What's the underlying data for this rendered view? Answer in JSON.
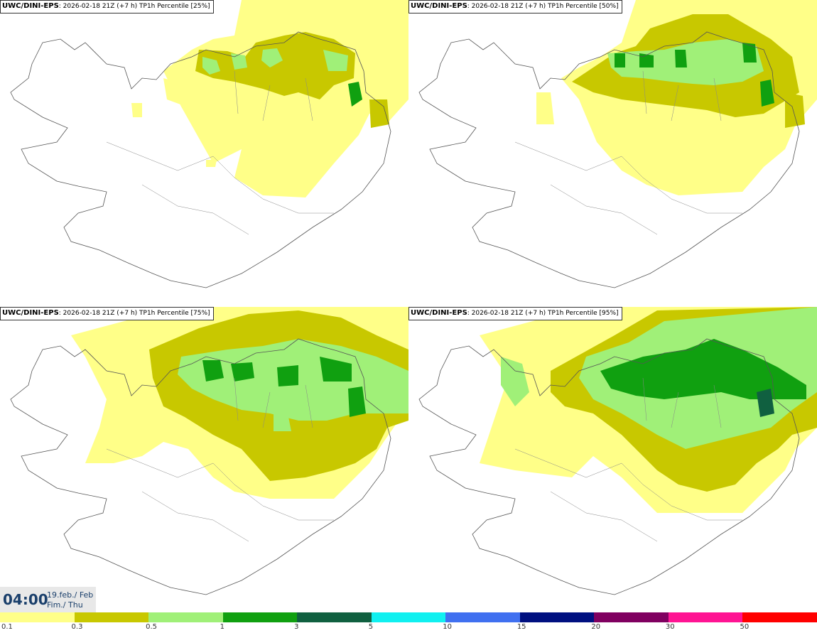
{
  "panels": [
    {
      "source": "UWC/DINI-EPS",
      "run": ": 2026-02-18 21Z (+7 h)",
      "title": " TP1h Percentile [25%]"
    },
    {
      "source": "UWC/DINI-EPS",
      "run": ": 2026-02-18 21Z (+7 h)",
      "title": " TP1h Percentile [50%]"
    },
    {
      "source": "UWC/DINI-EPS",
      "run": ": 2026-02-18 21Z (+7 h)",
      "title": " TP1h Percentile [75%]"
    },
    {
      "source": "UWC/DINI-EPS",
      "run": ": 2026-02-18 21Z (+7 h)",
      "title": " TP1h Percentile [95%]"
    }
  ],
  "timestamp": {
    "time": "04:00",
    "date_line1": "19.feb./ Feb",
    "date_line2": "Fim./ Thu"
  },
  "legend": {
    "colors": [
      "#ffff88",
      "#c8c800",
      "#a0f078",
      "#10a010",
      "#106040",
      "#10f0f0",
      "#4070f0",
      "#001080",
      "#800060",
      "#ff1493",
      "#ff0000"
    ],
    "ticks": [
      "0.1",
      "0.3",
      "0.5",
      "1",
      "3",
      "5",
      "10",
      "15",
      "20",
      "30",
      "50"
    ]
  }
}
